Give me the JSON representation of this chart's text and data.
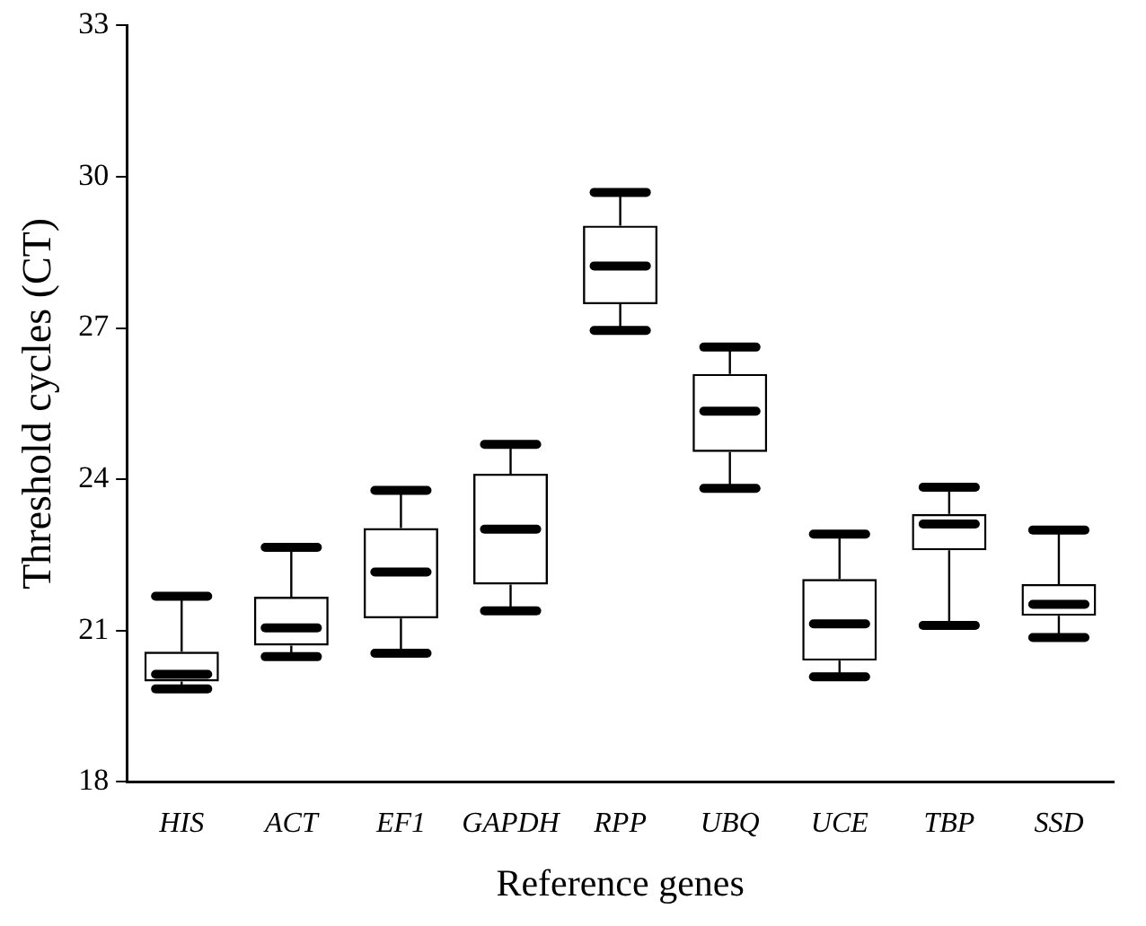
{
  "chart_data": {
    "type": "box",
    "xlabel": "Reference genes",
    "ylabel": "Threshold cycles (CT)",
    "categories": [
      "HIS",
      "ACT",
      "EF1",
      "GAPDH",
      "RPP",
      "UBQ",
      "UCE",
      "TBP",
      "SSD"
    ],
    "boxes": [
      {
        "low": 19.84,
        "q1": 19.99,
        "median": 20.13,
        "q3": 20.58,
        "high": 21.68
      },
      {
        "low": 20.48,
        "q1": 20.7,
        "median": 21.05,
        "q3": 21.67,
        "high": 22.65
      },
      {
        "low": 20.55,
        "q1": 21.24,
        "median": 22.16,
        "q3": 23.03,
        "high": 23.78
      },
      {
        "low": 21.39,
        "q1": 21.91,
        "median": 23.01,
        "q3": 24.11,
        "high": 24.69
      },
      {
        "low": 26.95,
        "q1": 27.47,
        "median": 28.23,
        "q3": 29.03,
        "high": 29.69
      },
      {
        "low": 23.82,
        "q1": 24.54,
        "median": 25.35,
        "q3": 26.09,
        "high": 26.62
      },
      {
        "low": 20.08,
        "q1": 20.4,
        "median": 21.13,
        "q3": 22.02,
        "high": 22.91
      },
      {
        "low": 21.1,
        "q1": 22.59,
        "median": 23.11,
        "q3": 23.31,
        "high": 23.84
      },
      {
        "low": 20.86,
        "q1": 21.29,
        "median": 21.52,
        "q3": 21.92,
        "high": 22.99
      }
    ],
    "color": "#000000",
    "ylim": [
      18,
      33
    ],
    "yticks": [
      18,
      21,
      24,
      27,
      30,
      33
    ],
    "grid": false,
    "legend": false
  }
}
